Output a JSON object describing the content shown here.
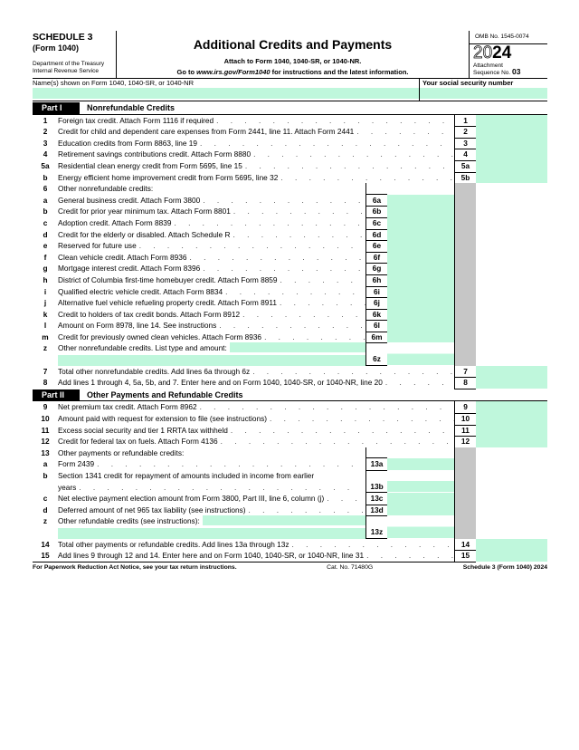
{
  "header": {
    "schedule": "SCHEDULE 3",
    "form": "(Form 1040)",
    "dept1": "Department of the Treasury",
    "dept2": "Internal Revenue Service",
    "title": "Additional Credits and Payments",
    "attach": "Attach to Form 1040, 1040-SR, or 1040-NR.",
    "goto_pre": "Go to ",
    "goto_url": "www.irs.gov/Form1040",
    "goto_post": " for instructions and the latest information.",
    "omb": "OMB No. 1545-0074",
    "year_outline": "20",
    "year_bold": "24",
    "attachment": "Attachment",
    "sequence": "Sequence No.",
    "sequence_no": "03"
  },
  "name_label": "Name(s) shown on Form 1040, 1040-SR, or 1040-NR",
  "ssn_label": "Your social security number",
  "colors": {
    "field": "#bff7dc",
    "shade": "#c6c6c6"
  },
  "parts": [
    {
      "label": "Part I",
      "title": "Nonrefundable Credits",
      "rows": [
        {
          "type": "right",
          "num": "1",
          "box": "1",
          "text": "Foreign tax credit. Attach Form 1116 if required"
        },
        {
          "type": "right",
          "num": "2",
          "box": "2",
          "text": "Credit for child and dependent care expenses from Form 2441, line 11. Attach Form 2441"
        },
        {
          "type": "right",
          "num": "3",
          "box": "3",
          "text": "Education credits from Form 8863, line 19"
        },
        {
          "type": "right",
          "num": "4",
          "box": "4",
          "text": "Retirement savings contributions credit. Attach Form 8880"
        },
        {
          "type": "right",
          "num": "5a",
          "box": "5a",
          "text": "Residential clean energy credit from Form 5695, line 15"
        },
        {
          "type": "right",
          "num": "b",
          "box": "5b",
          "text": "Energy efficient home improvement credit from Form 5695, line 32"
        },
        {
          "type": "head",
          "num": "6",
          "text": "Other nonrefundable credits:"
        },
        {
          "type": "inner",
          "num": "a",
          "box": "6a",
          "text": "General business credit. Attach Form 3800"
        },
        {
          "type": "inner",
          "num": "b",
          "box": "6b",
          "text": "Credit for prior year minimum tax. Attach Form 8801"
        },
        {
          "type": "inner",
          "num": "c",
          "box": "6c",
          "text": "Adoption credit. Attach Form 8839"
        },
        {
          "type": "inner",
          "num": "d",
          "box": "6d",
          "text": "Credit for the elderly or disabled. Attach Schedule R"
        },
        {
          "type": "inner",
          "num": "e",
          "box": "6e",
          "text": "Reserved for future use"
        },
        {
          "type": "inner",
          "num": "f",
          "box": "6f",
          "text": "Clean vehicle credit. Attach Form 8936"
        },
        {
          "type": "inner",
          "num": "g",
          "box": "6g",
          "text": "Mortgage interest credit. Attach Form 8396"
        },
        {
          "type": "inner",
          "num": "h",
          "box": "6h",
          "text": "District of Columbia first-time homebuyer credit. Attach Form 8859"
        },
        {
          "type": "inner",
          "num": "i",
          "box": "6i",
          "text": "Qualified electric vehicle credit. Attach Form 8834"
        },
        {
          "type": "inner",
          "num": "j",
          "box": "6j",
          "text": "Alternative fuel vehicle refueling property credit. Attach Form 8911"
        },
        {
          "type": "inner",
          "num": "k",
          "box": "6k",
          "text": "Credit to holders of tax credit bonds. Attach Form 8912"
        },
        {
          "type": "inner",
          "num": "l",
          "box": "6l",
          "text": "Amount on Form 8978, line 14. See instructions"
        },
        {
          "type": "inner",
          "num": "m",
          "box": "6m",
          "text": "Credit for previously owned clean vehicles. Attach Form 8936"
        },
        {
          "type": "z",
          "num": "z",
          "box": "6z",
          "text": "Other nonrefundable credits. List type and amount:"
        },
        {
          "type": "right",
          "num": "7",
          "box": "7",
          "text": "Total other nonrefundable credits. Add lines 6a through 6z"
        },
        {
          "type": "right",
          "num": "8",
          "box": "8",
          "text": "Add lines 1 through 4, 5a, 5b, and 7. Enter here and on Form 1040, 1040-SR, or 1040-NR, line 20"
        }
      ]
    },
    {
      "label": "Part II",
      "title": "Other Payments and Refundable Credits",
      "rows": [
        {
          "type": "right",
          "num": "9",
          "box": "9",
          "text": "Net premium tax credit. Attach Form 8962"
        },
        {
          "type": "right",
          "num": "10",
          "box": "10",
          "text": "Amount paid with request for extension to file (see instructions)"
        },
        {
          "type": "right",
          "num": "11",
          "box": "11",
          "text": "Excess social security and tier 1 RRTA tax withheld"
        },
        {
          "type": "right",
          "num": "12",
          "box": "12",
          "text": "Credit for federal tax on fuels. Attach Form 4136"
        },
        {
          "type": "head",
          "num": "13",
          "text": "Other payments or refundable credits:"
        },
        {
          "type": "inner",
          "num": "a",
          "box": "13a",
          "text": "Form 2439"
        },
        {
          "type": "inner2",
          "num": "b",
          "box": "13b",
          "text": "Section 1341 credit for repayment of amounts included in income from earlier",
          "text2": "years"
        },
        {
          "type": "inner",
          "num": "c",
          "box": "13c",
          "text": "Net elective payment election amount from Form 3800, Part III, line 6, column (j)"
        },
        {
          "type": "inner",
          "num": "d",
          "box": "13d",
          "text": "Deferred amount of net 965 tax liability (see instructions)"
        },
        {
          "type": "z",
          "num": "z",
          "box": "13z",
          "text": "Other refundable credits (see instructions):"
        },
        {
          "type": "right",
          "num": "14",
          "box": "14",
          "text": "Total other payments or refundable credits. Add lines 13a through 13z"
        },
        {
          "type": "right",
          "num": "15",
          "box": "15",
          "text": "Add lines 9 through 12 and 14. Enter here and on Form 1040, 1040-SR, or 1040-NR, line 31"
        }
      ]
    }
  ],
  "footer": {
    "notice": "For Paperwork Reduction Act Notice, see your tax return instructions.",
    "cat": "Cat. No. 71480G",
    "form_id": "Schedule 3 (Form 1040) 2024"
  }
}
